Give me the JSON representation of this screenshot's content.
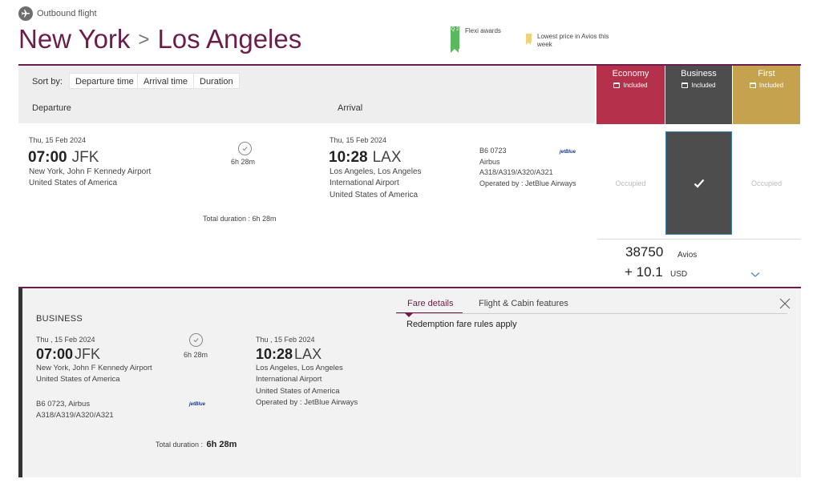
{
  "header": {
    "outbound_label": "Outbound flight",
    "origin_city": "New York",
    "separator": ">",
    "destination_city": "Los Angeles",
    "legend": {
      "flexi_badge": "Q 2",
      "flexi_text": "Flexi awards",
      "lowest_text": "Lowest price in Avios this week"
    }
  },
  "sortbar": {
    "label": "Sort by:",
    "options": [
      "Departure time",
      "Arrival time",
      "Duration"
    ]
  },
  "columns": {
    "departure": "Departure",
    "arrival": "Arrival"
  },
  "cabins": [
    {
      "name": "Economy",
      "included": "Included",
      "color": "#b5304a",
      "status": "Occupied"
    },
    {
      "name": "Business",
      "included": "Included",
      "color": "#4d4d4d",
      "status": "selected"
    },
    {
      "name": "First",
      "included": "Included",
      "color": "#c4a24e",
      "status": "Occupied"
    }
  ],
  "flight": {
    "dep_date": "Thu, 15 Feb 2024",
    "dep_time": "07:00",
    "dep_code": "JFK",
    "dep_airport": "New York, John F Kennedy Airport",
    "dep_country": "United States of America",
    "duration": "6h 28m",
    "total_duration": "Total duration : 6h 28m",
    "arr_date": "Thu, 15 Feb 2024",
    "arr_time": "10:28",
    "arr_code": "LAX",
    "arr_airport_1": "Los Angeles, Los Angeles",
    "arr_airport_2": "International Airport",
    "arr_country": "United States of America",
    "flight_no": "B6 0723",
    "maker": "Airbus",
    "aircraft": "A318/A319/A320/A321",
    "operated": "Operated by : JetBlue Airways",
    "airline_logo": "jetBlue"
  },
  "price": {
    "avios": "38750",
    "avios_label": "Avios",
    "usd": "+ 10.1",
    "usd_label": "USD"
  },
  "details": {
    "cabin": "BUSINESS",
    "dep_date": "Thu , 15 Feb 2024",
    "dep_time": "07:00",
    "dep_code": "JFK",
    "dep_airport": "New York, John F Kennedy Airport",
    "dep_country": "United States of America",
    "duration": "6h 28m",
    "arr_date": "Thu , 15 Feb 2024",
    "arr_time": "10:28",
    "arr_code": "LAX",
    "arr_airport_1": "Los Angeles, Los Angeles",
    "arr_airport_2": "International Airport",
    "arr_country": "United States of America",
    "operated": "Operated by : JetBlue Airways",
    "flight_line_1": "B6 0723, Airbus",
    "flight_line_2": "A318/A319/A320/A321",
    "airline_logo": "jetBlue",
    "total_duration_label": "Total duration :",
    "total_duration_value": "6h 28m",
    "tabs": [
      "Fare details",
      "Flight & Cabin features"
    ],
    "fare_text": "Redemption fare rules apply"
  },
  "colors": {
    "brand": "#6b1e4b",
    "economy": "#b5304a",
    "business": "#4d4d4d",
    "first": "#c4a24e",
    "flexi": "#5cb85c",
    "lowest": "#f0d27a"
  }
}
